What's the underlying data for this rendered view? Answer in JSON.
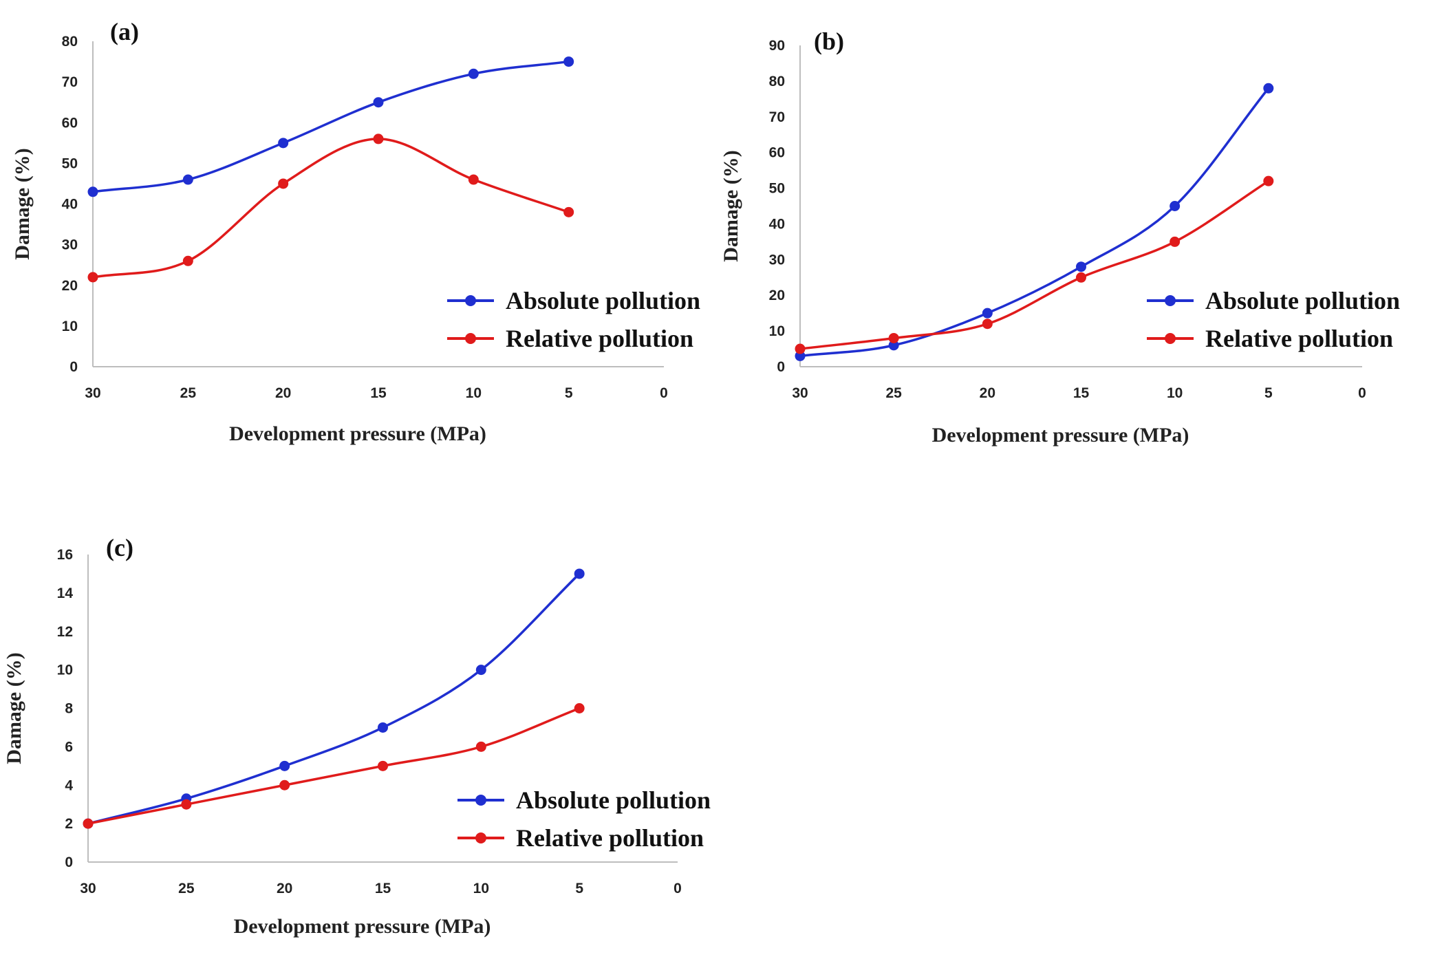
{
  "chart_data": [
    {
      "panel": "(a)",
      "type": "line",
      "x": [
        30,
        25,
        20,
        15,
        10,
        5
      ],
      "xticks": [
        "30",
        "25",
        "20",
        "15",
        "10",
        "5",
        "0"
      ],
      "xlim": [
        30,
        0
      ],
      "yticks": [
        "0",
        "10",
        "20",
        "30",
        "40",
        "50",
        "60",
        "70",
        "80"
      ],
      "ylim": [
        0,
        80
      ],
      "xlabel": "Development pressure (MPa)",
      "ylabel": "Damage (%)",
      "legend_position": "bottom-right",
      "series": [
        {
          "name": "Absolute pollution",
          "color": "#1f2fd0",
          "values": [
            43,
            46,
            55,
            65,
            72,
            75
          ]
        },
        {
          "name": "Relative pollution",
          "color": "#e01b1b",
          "values": [
            22,
            26,
            45,
            56,
            46,
            38
          ]
        }
      ]
    },
    {
      "panel": "(b)",
      "type": "line",
      "x": [
        30,
        25,
        20,
        15,
        10,
        5
      ],
      "xticks": [
        "30",
        "25",
        "20",
        "15",
        "10",
        "5",
        "0"
      ],
      "xlim": [
        30,
        0
      ],
      "yticks": [
        "0",
        "10",
        "20",
        "30",
        "40",
        "50",
        "60",
        "70",
        "80",
        "90"
      ],
      "ylim": [
        0,
        90
      ],
      "xlabel": "Development pressure (MPa)",
      "ylabel": "Damage (%)",
      "legend_position": "bottom-right",
      "series": [
        {
          "name": "Absolute pollution",
          "color": "#1f2fd0",
          "values": [
            3,
            6,
            15,
            28,
            45,
            78
          ]
        },
        {
          "name": "Relative pollution",
          "color": "#e01b1b",
          "values": [
            5,
            8,
            12,
            25,
            35,
            52
          ]
        }
      ]
    },
    {
      "panel": "(c)",
      "type": "line",
      "x": [
        30,
        25,
        20,
        15,
        10,
        5
      ],
      "xticks": [
        "30",
        "25",
        "20",
        "15",
        "10",
        "5",
        "0"
      ],
      "xlim": [
        30,
        0
      ],
      "yticks": [
        "0",
        "2",
        "4",
        "6",
        "8",
        "10",
        "12",
        "14",
        "16"
      ],
      "ylim": [
        0,
        16
      ],
      "xlabel": "Development pressure (MPa)",
      "ylabel": "Damage (%)",
      "legend_position": "bottom-right",
      "series": [
        {
          "name": "Absolute pollution",
          "color": "#1f2fd0",
          "values": [
            2,
            3.3,
            5,
            7,
            10,
            15
          ]
        },
        {
          "name": "Relative pollution",
          "color": "#e01b1b",
          "values": [
            2,
            3,
            4,
            5,
            6,
            8
          ]
        }
      ]
    }
  ]
}
